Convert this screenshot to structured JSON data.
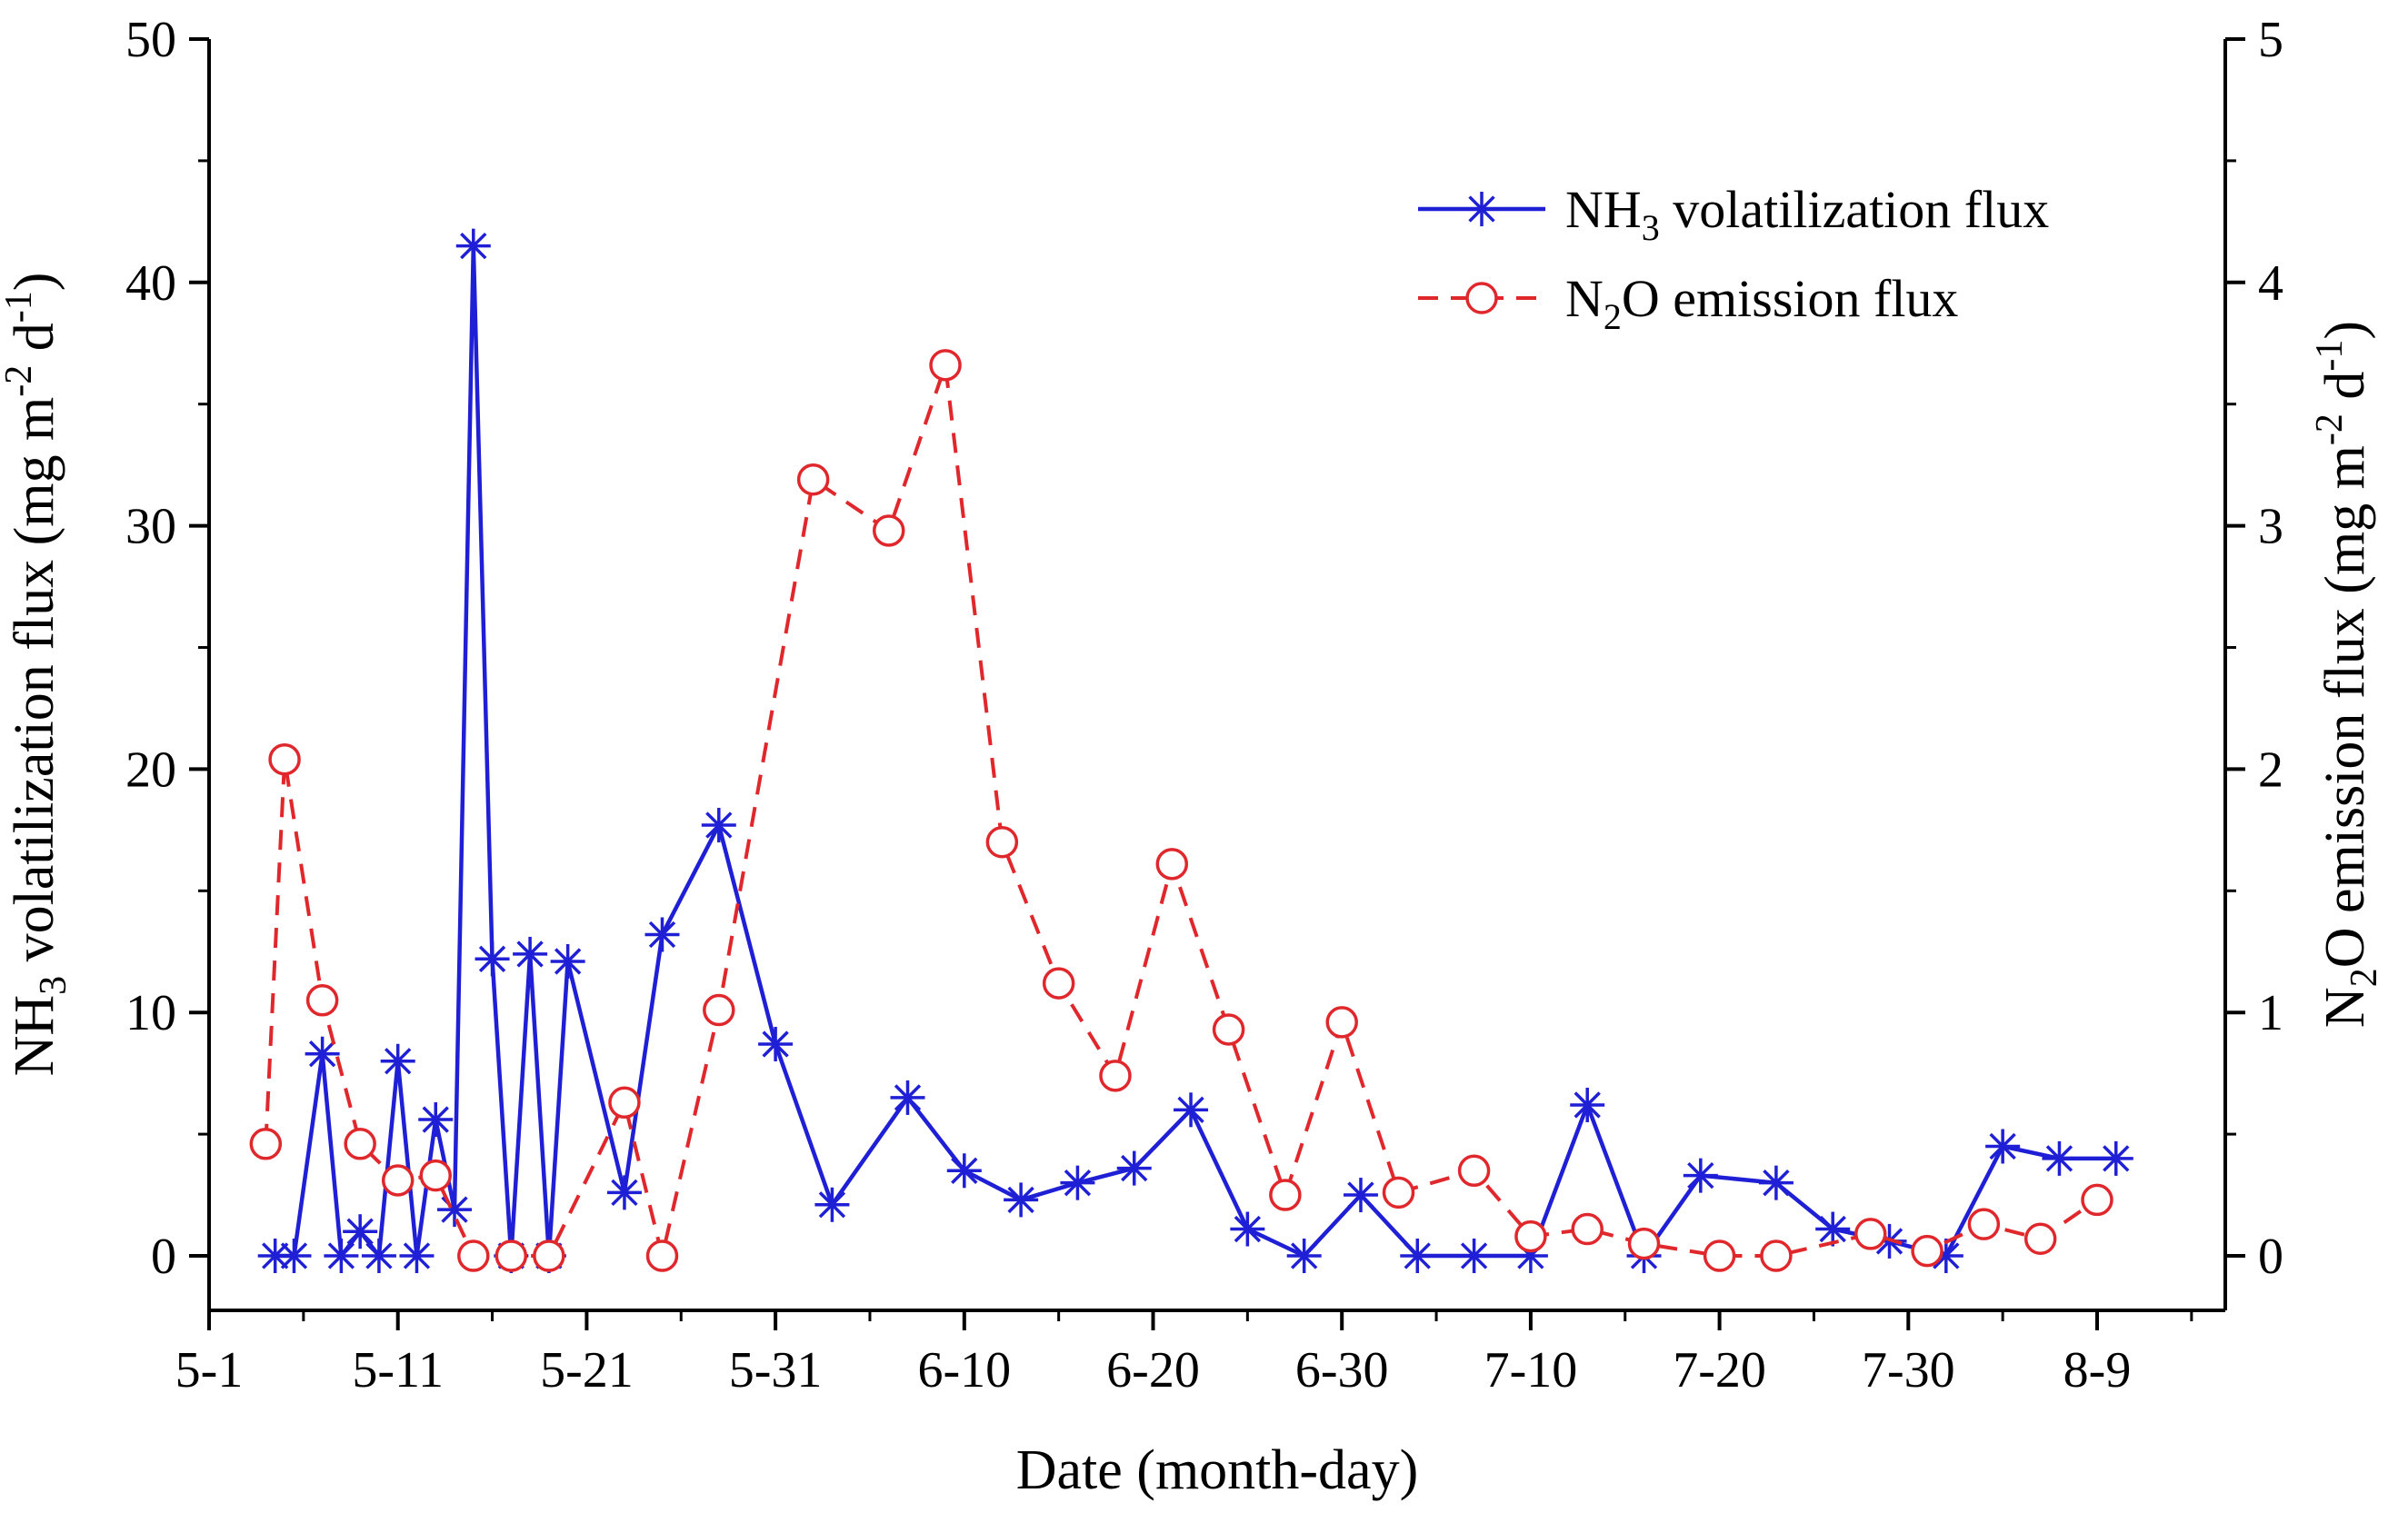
{
  "chart_data": {
    "type": "line",
    "xlabel": "Date (month-day)",
    "ylabel_left": {
      "main": "NH",
      "sub": "3",
      "rest": " volatilization flux (mg m",
      "sup1": "-2",
      "mid": " d",
      "sup2": "-1",
      "end": ")"
    },
    "ylabel_right": {
      "main": "N",
      "sub": "2",
      "rest": "O emission flux (mg m",
      "sup1": "-2",
      "mid": " d",
      "sup2": "-1",
      "end": ")"
    },
    "x_tick_labels": [
      "5-1",
      "5-11",
      "5-21",
      "5-31",
      "6-10",
      "6-20",
      "6-30",
      "7-10",
      "7-20",
      "7-30",
      "8-9"
    ],
    "x_tick_days": [
      0,
      10,
      20,
      30,
      40,
      50,
      60,
      70,
      80,
      90,
      100
    ],
    "xlim_days": [
      0,
      107
    ],
    "ylim_left": [
      0,
      50
    ],
    "ylim_right": [
      0,
      5
    ],
    "y_left_ticks": [
      "0",
      "10",
      "20",
      "30",
      "40",
      "50"
    ],
    "y_right_ticks": [
      "0",
      "1",
      "2",
      "3",
      "4",
      "5"
    ],
    "legend": [
      {
        "main": "NH",
        "sub": "3",
        "rest": " volatilization flux"
      },
      {
        "main": "N",
        "sub": "2",
        "rest": "O emission flux"
      }
    ],
    "series": [
      {
        "name": "NH3 volatilization flux",
        "axis": "left",
        "color": "#1f1fd6",
        "marker": "asterisk",
        "line": "solid",
        "x": [
          3.5,
          4.5,
          6,
          7,
          8,
          9,
          10,
          11,
          12,
          13,
          14,
          15,
          16,
          17,
          18,
          19,
          22,
          24,
          27,
          30,
          33,
          37,
          40,
          43,
          46,
          49,
          52,
          55,
          58,
          61,
          64,
          67,
          70,
          73,
          76,
          79,
          83,
          86,
          89,
          92,
          95,
          98,
          101
        ],
        "values": [
          0,
          0,
          8.3,
          0,
          1.0,
          0,
          8.0,
          0,
          5.6,
          1.9,
          41.5,
          12.2,
          0,
          12.4,
          0,
          12.1,
          2.6,
          13.2,
          17.7,
          8.7,
          2.1,
          6.5,
          3.5,
          2.3,
          3.0,
          3.6,
          6.0,
          1.1,
          0,
          2.5,
          0,
          0,
          0,
          6.2,
          0,
          3.3,
          3.0,
          1.1,
          0.6,
          0,
          4.5,
          4.0,
          4.0
        ]
      },
      {
        "name": "N2O emission flux",
        "axis": "right",
        "color": "#e0282c",
        "marker": "circle",
        "line": "dashed",
        "x": [
          3,
          4,
          6,
          8,
          10,
          12,
          14,
          16,
          18,
          22,
          24,
          27,
          32,
          36,
          39,
          42,
          45,
          48,
          51,
          54,
          57,
          60,
          63,
          67,
          70,
          73,
          76,
          80,
          83,
          88,
          91,
          94,
          97,
          100
        ],
        "values": [
          0.46,
          2.04,
          1.05,
          0.46,
          0.31,
          0.33,
          0.0,
          0.0,
          0.0,
          0.63,
          0.0,
          1.01,
          3.19,
          2.98,
          3.66,
          1.7,
          1.12,
          0.74,
          1.61,
          0.93,
          0.25,
          0.96,
          0.26,
          0.35,
          0.08,
          0.11,
          0.05,
          0.0,
          0.0,
          0.09,
          0.02,
          0.13,
          0.07,
          0.23
        ]
      }
    ]
  }
}
